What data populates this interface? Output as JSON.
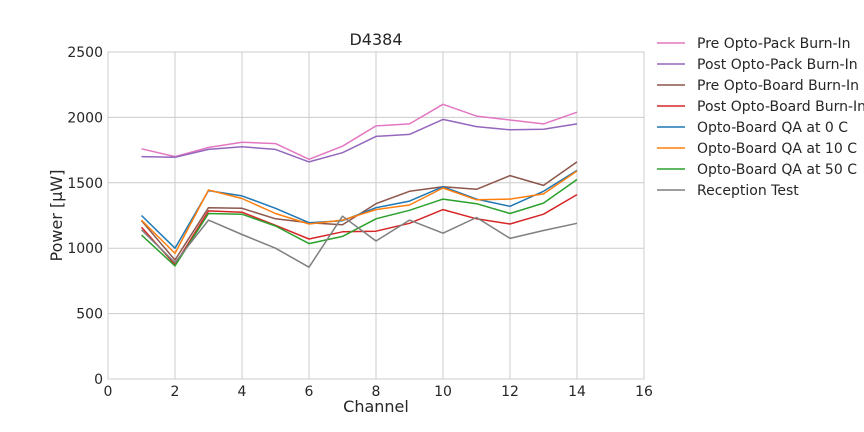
{
  "chart_data": {
    "type": "line",
    "title": "D4384",
    "xlabel": "Channel",
    "ylabel": "Power [μW]",
    "xlim": [
      0,
      16
    ],
    "ylim": [
      0,
      2500
    ],
    "xticks": [
      0,
      2,
      4,
      6,
      8,
      10,
      12,
      14,
      16
    ],
    "yticks": [
      0,
      500,
      1000,
      1500,
      2000,
      2500
    ],
    "grid": true,
    "legend_position": "outside-right",
    "x": [
      1,
      2,
      3,
      4,
      5,
      6,
      7,
      8,
      9,
      10,
      11,
      12,
      13,
      14
    ],
    "series": [
      {
        "name": "Pre Opto-Pack Burn-In",
        "color": "#e377c2",
        "values": [
          1760,
          1700,
          1770,
          1810,
          1800,
          1680,
          1780,
          1935,
          1950,
          2100,
          2010,
          1980,
          1950,
          2040
        ]
      },
      {
        "name": "Post Opto-Pack Burn-In",
        "color": "#9467bd",
        "values": [
          1700,
          1695,
          1755,
          1775,
          1755,
          1660,
          1730,
          1855,
          1870,
          1985,
          1930,
          1905,
          1910,
          1950
        ]
      },
      {
        "name": "Pre Opto-Board Burn-In",
        "color": "#8c564b",
        "values": [
          1210,
          910,
          1310,
          1305,
          1225,
          1195,
          1180,
          1340,
          1435,
          1470,
          1450,
          1555,
          1480,
          1660
        ]
      },
      {
        "name": "Post Opto-Board Burn-In",
        "color": "#d62728",
        "values": [
          1160,
          875,
          1285,
          1275,
          1175,
          1070,
          1125,
          1130,
          1190,
          1295,
          1225,
          1185,
          1260,
          1410
        ]
      },
      {
        "name": "Opto-Board QA at 0 C",
        "color": "#1f77b4",
        "values": [
          1250,
          1000,
          1440,
          1400,
          1305,
          1195,
          1210,
          1310,
          1360,
          1470,
          1375,
          1320,
          1435,
          1595
        ]
      },
      {
        "name": "Opto-Board QA at 10 C",
        "color": "#ff7f0e",
        "values": [
          1215,
          960,
          1445,
          1380,
          1265,
          1185,
          1215,
          1295,
          1330,
          1460,
          1370,
          1375,
          1415,
          1590
        ]
      },
      {
        "name": "Opto-Board QA at 50 C",
        "color": "#2ca02c",
        "values": [
          1100,
          865,
          1265,
          1260,
          1170,
          1035,
          1090,
          1225,
          1290,
          1375,
          1340,
          1265,
          1345,
          1525
        ]
      },
      {
        "name": "Reception Test",
        "color": "#7f7f7f",
        "values": [
          1140,
          890,
          1215,
          1105,
          1000,
          855,
          1245,
          1055,
          1215,
          1115,
          1235,
          1075,
          1135,
          1190
        ]
      }
    ]
  }
}
